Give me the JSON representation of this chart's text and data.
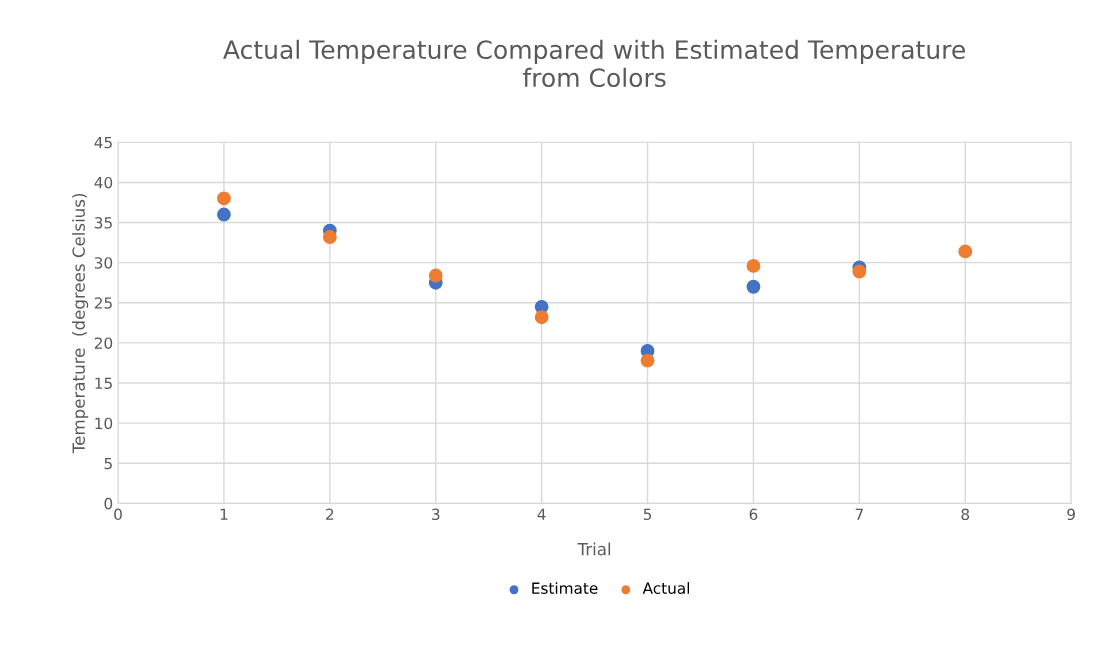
{
  "chart_data": {
    "type": "scatter",
    "title": "Actual Temperature Compared with Estimated Temperature\nfrom Colors",
    "xlabel": "Trial",
    "ylabel": "Temperature  (degrees Celsius)",
    "x": [
      1,
      2,
      3,
      4,
      5,
      6,
      7,
      8
    ],
    "series": [
      {
        "name": "Estimate",
        "color": "#4472c4",
        "values": [
          36,
          34,
          27.5,
          24.5,
          19,
          27,
          29.4,
          null
        ]
      },
      {
        "name": "Actual",
        "color": "#ed7d31",
        "values": [
          38,
          33.2,
          28.4,
          23.2,
          17.8,
          29.6,
          28.9,
          31.4
        ]
      }
    ],
    "xlim": [
      0,
      9
    ],
    "xticks": [
      0,
      1,
      2,
      3,
      4,
      5,
      6,
      7,
      8,
      9
    ],
    "ylim": [
      0,
      45
    ],
    "yticks": [
      0,
      5,
      10,
      15,
      20,
      25,
      30,
      35,
      40,
      45
    ],
    "grid": true,
    "legend": "bottom",
    "marker": "circle"
  }
}
